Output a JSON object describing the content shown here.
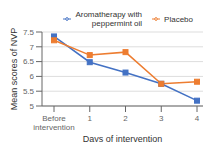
{
  "chart_data": {
    "type": "line",
    "categories": [
      "Before\nintervention",
      "1",
      "2",
      "3",
      "4"
    ],
    "series": [
      {
        "name": "Aromatherapy with\npeppermint oil",
        "color": "#4472c4",
        "marker": "square",
        "values": [
          7.35,
          6.48,
          6.13,
          5.75,
          5.18
        ]
      },
      {
        "name": "Placebo",
        "color": "#ed7d31",
        "marker": "square",
        "values": [
          7.22,
          6.72,
          6.82,
          5.75,
          5.82
        ]
      }
    ],
    "xlabel": "Days of intervention",
    "ylabel": "Mean scores of NVP",
    "ylim": [
      5.0,
      7.5
    ],
    "yticks": [
      5.0,
      5.5,
      6.0,
      6.5,
      7.0,
      7.5
    ],
    "grid": "y",
    "legend": "upper right"
  }
}
